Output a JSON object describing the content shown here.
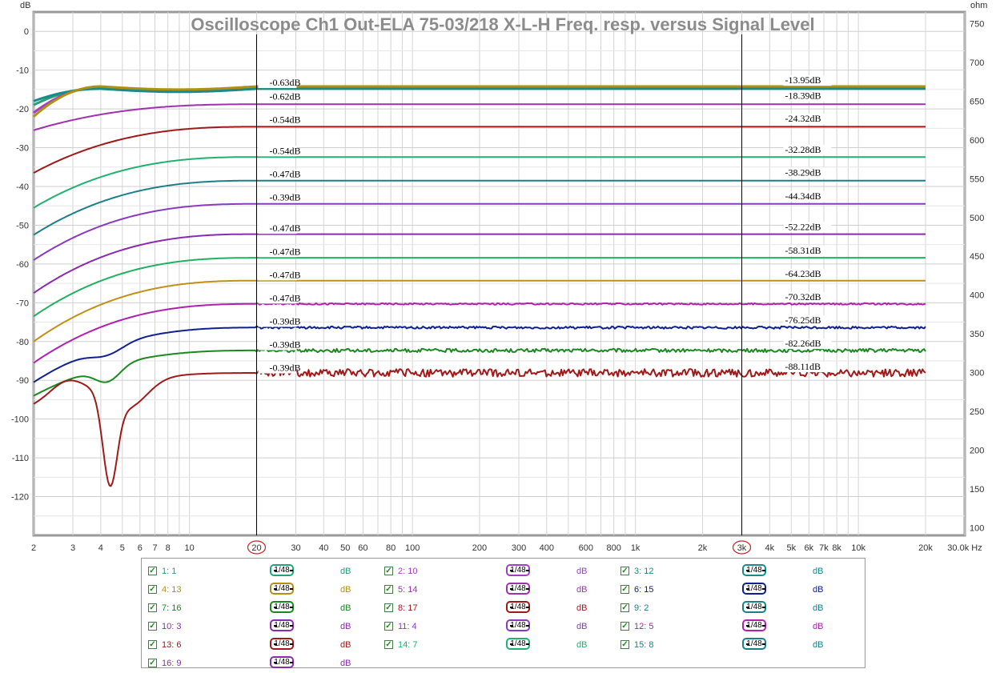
{
  "chart_data": {
    "type": "line",
    "title": "Oscilloscope Ch1 Out-ELA 75-03/218 X-L-H Freq. resp. versus Signal Level",
    "ylabel_left": "dB",
    "ylabel_right": "ohm",
    "x_scale": "log",
    "xlim": [
      2,
      30000
    ],
    "ylim_left": [
      -130,
      5
    ],
    "ylim_right": [
      90,
      765
    ],
    "x_ticks": [
      2,
      3,
      4,
      5,
      6,
      7,
      8,
      10,
      20,
      30,
      40,
      50,
      60,
      80,
      100,
      200,
      300,
      400,
      600,
      800,
      1000,
      2000,
      3000,
      4000,
      5000,
      6000,
      7000,
      8000,
      10000,
      20000,
      30000
    ],
    "x_tick_labels": [
      "2",
      "3",
      "4",
      "5",
      "6",
      "7",
      "8",
      "10",
      "20",
      "30",
      "40",
      "50",
      "60",
      "80",
      "100",
      "200",
      "300",
      "400",
      "600",
      "800",
      "1k",
      "2k",
      "3k",
      "4k",
      "5k",
      "6k",
      "7k",
      "8k",
      "10k",
      "20k",
      "30.0k Hz"
    ],
    "y_ticks_left": [
      0,
      -10,
      -20,
      -30,
      -40,
      -50,
      -60,
      -70,
      -80,
      -90,
      -100,
      -110,
      -120
    ],
    "y_tick_labels_left": [
      "0",
      "-10",
      "-20",
      "-30",
      "-40",
      "-50",
      "-60",
      "-70",
      "-80",
      "-90",
      "-100",
      "-110",
      "-120"
    ],
    "y_ticks_right": [
      750,
      700,
      650,
      600,
      550,
      500,
      450,
      400,
      350,
      300,
      250,
      200,
      150,
      100
    ],
    "y_tick_labels_right": [
      "750",
      "700",
      "650",
      "600",
      "550",
      "500",
      "450",
      "400",
      "350",
      "300",
      "250",
      "200",
      "150",
      "100"
    ],
    "grid": true,
    "cursors": [
      {
        "x": 20,
        "label": "20"
      },
      {
        "x": 3000,
        "label": "3k"
      }
    ],
    "series": [
      {
        "name": "1: 1",
        "color": "#27a07a",
        "start": -19,
        "flat": -14.6,
        "kind": "top",
        "label_left": "-0.63dB",
        "label_right": "-13.95dB",
        "y_label_left": -14.0,
        "y_label_right": -13.4
      },
      {
        "name": "2: 10",
        "color": "#a040c0",
        "start": -21,
        "flat": -14.4,
        "kind": "top",
        "label_left": "",
        "label_right": "",
        "y_label_left": -14.0,
        "y_label_right": -13.4
      },
      {
        "name": "3: 12",
        "color": "#1a8a8a",
        "start": -18,
        "flat": -14.8,
        "kind": "top",
        "label_left": "",
        "label_right": "",
        "y_label_left": -14.0,
        "y_label_right": -13.4
      },
      {
        "name": "4: 13",
        "color": "#b09010",
        "start": -22,
        "flat": -14.2,
        "kind": "top",
        "label_left": "",
        "label_right": "",
        "y_label_left": -14.0,
        "y_label_right": -13.4
      },
      {
        "name": "5: 14",
        "color": "#a030b0",
        "start": -25.5,
        "flat": -18.8,
        "kind": "smooth",
        "label_left": "-0.62dB",
        "label_right": "-18.39dB",
        "y_label_left": -17.6,
        "y_label_right": -17.4
      },
      {
        "name": "6: 15",
        "color": "#a01818",
        "start": -36.5,
        "flat": -24.6,
        "kind": "smooth",
        "label_left": "-0.54dB",
        "label_right": "-24.32dB",
        "y_label_left": -23.6,
        "y_label_right": -23.3
      },
      {
        "name": "7: 16",
        "color": "#20b070",
        "start": -45.5,
        "flat": -32.4,
        "kind": "smooth",
        "label_left": "-0.54dB",
        "label_right": "-32.28dB",
        "y_label_left": -31.6,
        "y_label_right": -31.3
      },
      {
        "name": "8: 17",
        "color": "#1a8088",
        "start": -52.5,
        "flat": -38.5,
        "kind": "smooth",
        "label_left": "-0.47dB",
        "label_right": "-38.29dB",
        "y_label_left": -37.6,
        "y_label_right": -37.2
      },
      {
        "name": "9: 2",
        "color": "#8a3ac0",
        "start": -59,
        "flat": -44.5,
        "kind": "smooth",
        "label_left": "-0.39dB",
        "label_right": "-44.34dB",
        "y_label_left": -43.6,
        "y_label_right": -43.3
      },
      {
        "name": "10: 3",
        "color": "#8a2ab0",
        "start": -67.5,
        "flat": -52.3,
        "kind": "smooth",
        "label_left": "-0.47dB",
        "label_right": "-52.22dB",
        "y_label_left": -51.6,
        "y_label_right": -51.2
      },
      {
        "name": "11: 4",
        "color": "#20b060",
        "start": -73.5,
        "flat": -58.4,
        "kind": "smooth",
        "label_left": "-0.47dB",
        "label_right": "-58.31dB",
        "y_label_left": -57.6,
        "y_label_right": -57.3
      },
      {
        "name": "12: 5",
        "color": "#c09018",
        "start": -80,
        "flat": -64.3,
        "kind": "smooth",
        "label_left": "-0.47dB",
        "label_right": "-64.23dB",
        "y_label_left": -63.6,
        "y_label_right": -63.3
      },
      {
        "name": "13: 6",
        "color": "#b020b0",
        "start": -85.5,
        "flat": -70.3,
        "kind": "wavy",
        "label_left": "-0.47dB",
        "label_right": "-70.32dB",
        "y_label_left": -69.6,
        "y_label_right": -69.3
      },
      {
        "name": "14: 7",
        "color": "#102090",
        "start": -90.5,
        "flat": -76.4,
        "kind": "low",
        "label_left": "-0.39dB",
        "label_right": "-76.25dB",
        "y_label_left": -75.6,
        "y_label_right": -75.3
      },
      {
        "name": "15: 8",
        "color": "#1a8a20",
        "start": -94,
        "flat": -82.3,
        "kind": "lower",
        "label_left": "-0.39dB",
        "label_right": "-82.26dB",
        "y_label_left": -81.6,
        "y_label_right": -81.3
      },
      {
        "name": "16: 9",
        "color": "#a01a1a",
        "start": -96.5,
        "flat": -88.1,
        "kind": "noise",
        "label_left": "-0.39dB",
        "label_right": "-88.11dB",
        "y_label_left": -87.6,
        "y_label_right": -87.3
      }
    ]
  },
  "legend": {
    "smoothing_label": "1/48",
    "unit_label": "dB",
    "entries": [
      {
        "label": "1: 1",
        "color": "#27a07a"
      },
      {
        "label": "2: 10",
        "color": "#a040c0"
      },
      {
        "label": "3: 12",
        "color": "#1a8a8a"
      },
      {
        "label": "4: 13",
        "color": "#b09010"
      },
      {
        "label": "5: 14",
        "color": "#a030b0"
      },
      {
        "label": "6: 15",
        "color": "#102090"
      },
      {
        "label": "7: 16",
        "color": "#1a8a20"
      },
      {
        "label": "8: 17",
        "color": "#a01818"
      },
      {
        "label": "9: 2",
        "color": "#1a8088"
      },
      {
        "label": "10: 3",
        "color": "#8a2ab0"
      },
      {
        "label": "11: 4",
        "color": "#8a3ac0"
      },
      {
        "label": "12: 5",
        "color": "#b020b0"
      },
      {
        "label": "13: 6",
        "color": "#a01a1a"
      },
      {
        "label": "14: 7",
        "color": "#20b070"
      },
      {
        "label": "15: 8",
        "color": "#1a8088"
      },
      {
        "label": "16: 9",
        "color": "#8a2ab0"
      }
    ]
  }
}
